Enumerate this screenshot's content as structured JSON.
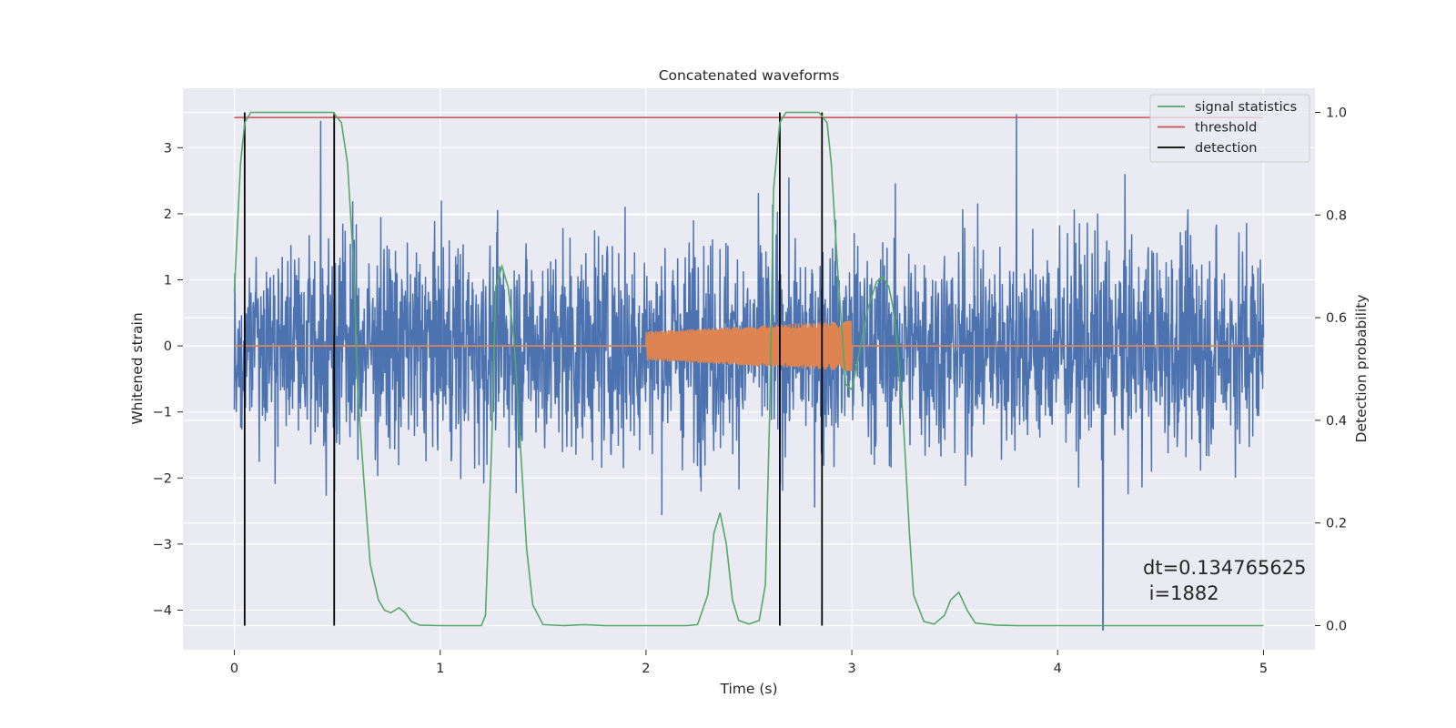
{
  "chart_data": {
    "type": "line",
    "title": "Concatenated waveforms",
    "xlabel": "Time (s)",
    "ylabel": "Whitened strain",
    "y2label": "Detection probability",
    "xlim": [
      -0.25,
      5.25
    ],
    "ylim": [
      -4.6,
      3.9
    ],
    "y2lim": [
      -0.047,
      1.047
    ],
    "xticks": [
      "0",
      "1",
      "2",
      "3",
      "4",
      "5"
    ],
    "xtick_values": [
      0,
      1,
      2,
      3,
      4,
      5
    ],
    "yticks": [
      "−4",
      "−3",
      "−2",
      "−1",
      "0",
      "1",
      "2",
      "3"
    ],
    "ytick_values": [
      -4,
      -3,
      -2,
      -1,
      0,
      1,
      2,
      3
    ],
    "y2ticks": [
      "0.0",
      "0.2",
      "0.4",
      "0.6",
      "0.8",
      "1.0"
    ],
    "y2tick_values": [
      0.0,
      0.2,
      0.4,
      0.6,
      0.8,
      1.0
    ],
    "grid": true,
    "legend": {
      "position": "top-right",
      "entries": [
        {
          "label": "signal statistics",
          "color": "#55a868"
        },
        {
          "label": "threshold",
          "color": "#c44e52"
        },
        {
          "label": "detection",
          "color": "#000000"
        }
      ]
    },
    "annotation": {
      "line1": "dt=0.134765625",
      "line2": " i=1882"
    },
    "colors": {
      "strain": "#4c72b0",
      "injection": "#dd8452",
      "statistics": "#55a868",
      "threshold": "#c44e52",
      "detection": "#000000",
      "background": "#eaeaf2",
      "grid": "#ffffff"
    },
    "strain_series": {
      "x_range": [
        0,
        5
      ],
      "y_range_approx": [
        -4.3,
        3.5
      ],
      "typical_envelope": [
        -2.0,
        2.5
      ],
      "spikes": [
        {
          "x": 0.42,
          "y": 3.4
        },
        {
          "x": 3.8,
          "y": 3.5
        },
        {
          "x": 4.22,
          "y": -4.3
        }
      ]
    },
    "injection_series": {
      "x_range": [
        2.0,
        3.0
      ],
      "amplitude_start": 0.22,
      "amplitude_end": 0.38,
      "baseline": 0
    },
    "statistics_series": {
      "x": [
        0,
        0.03,
        0.05,
        0.08,
        0.1,
        0.2,
        0.3,
        0.4,
        0.48,
        0.52,
        0.55,
        0.58,
        0.6,
        0.63,
        0.66,
        0.7,
        0.73,
        0.76,
        0.78,
        0.8,
        0.83,
        0.86,
        0.9,
        1.0,
        1.1,
        1.2,
        1.22,
        1.25,
        1.27,
        1.3,
        1.33,
        1.36,
        1.39,
        1.42,
        1.45,
        1.5,
        1.6,
        1.7,
        1.8,
        1.9,
        2.0,
        2.1,
        2.2,
        2.25,
        2.3,
        2.33,
        2.36,
        2.39,
        2.42,
        2.45,
        2.5,
        2.55,
        2.58,
        2.6,
        2.62,
        2.65,
        2.68,
        2.72,
        2.76,
        2.8,
        2.84,
        2.88,
        2.9,
        2.93,
        2.97,
        3.0,
        3.03,
        3.08,
        3.12,
        3.15,
        3.18,
        3.2,
        3.22,
        3.25,
        3.28,
        3.3,
        3.35,
        3.4,
        3.45,
        3.48,
        3.52,
        3.56,
        3.6,
        3.7,
        3.8,
        3.9,
        4.0,
        4.5,
        5.0
      ],
      "y": [
        0.65,
        0.9,
        0.98,
        1.0,
        1.0,
        1.0,
        1.0,
        1.0,
        1.0,
        0.98,
        0.9,
        0.7,
        0.45,
        0.28,
        0.12,
        0.05,
        0.03,
        0.025,
        0.03,
        0.035,
        0.025,
        0.008,
        0.001,
        0.0,
        0.0,
        0.0,
        0.02,
        0.35,
        0.66,
        0.7,
        0.66,
        0.55,
        0.35,
        0.15,
        0.04,
        0.002,
        0.0,
        0.002,
        0.0,
        0.0,
        0.0,
        0.0,
        0.0,
        0.002,
        0.06,
        0.18,
        0.22,
        0.16,
        0.05,
        0.01,
        0.003,
        0.01,
        0.08,
        0.4,
        0.85,
        0.98,
        1.0,
        1.0,
        1.0,
        1.0,
        1.0,
        0.98,
        0.9,
        0.7,
        0.47,
        0.46,
        0.52,
        0.62,
        0.67,
        0.68,
        0.66,
        0.62,
        0.55,
        0.4,
        0.18,
        0.06,
        0.008,
        0.003,
        0.02,
        0.05,
        0.065,
        0.03,
        0.005,
        0.001,
        0.0,
        0.0,
        0.0,
        0.0,
        0.0
      ]
    },
    "threshold_series": {
      "x": [
        0,
        5
      ],
      "y": [
        0.99,
        0.99
      ]
    },
    "detection_series": {
      "x": [
        0.05,
        0.485,
        2.65,
        2.855
      ],
      "y_range": [
        0,
        1.0
      ]
    }
  }
}
